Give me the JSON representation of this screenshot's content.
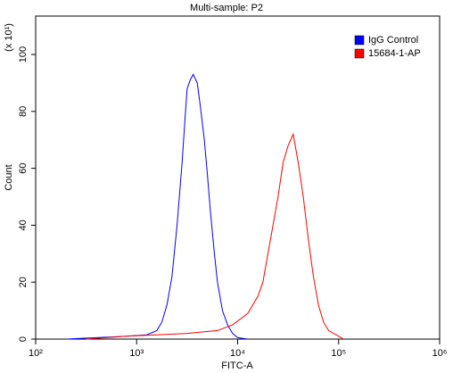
{
  "chart_data": {
    "type": "line",
    "title": "Multi-sample: P2",
    "x_label": "FITC-A",
    "y_label": "Count",
    "y_multiplier": "(x 10¹)",
    "xscale": "log",
    "xlim": [
      100,
      1000000
    ],
    "xticks": [
      {
        "value": 100,
        "label": "10²"
      },
      {
        "value": 1000,
        "label": "10³"
      },
      {
        "value": 10000,
        "label": "10⁴"
      },
      {
        "value": 100000,
        "label": "10⁵"
      },
      {
        "value": 1000000,
        "label": "10⁶"
      }
    ],
    "ylim": [
      0,
      113.5
    ],
    "yticks": [
      0,
      20,
      40,
      60,
      80,
      100
    ],
    "legend": "top-right",
    "series": [
      {
        "name": "IgG Control",
        "color": "#0000ff",
        "x": [
          200,
          398,
          794,
          1259,
          1585,
          1778,
          1995,
          2239,
          2512,
          2818,
          3020,
          3162,
          3388,
          3631,
          3981,
          4266,
          4677,
          5012,
          5370,
          5888,
          6310,
          7079,
          7943,
          8913,
          10000,
          12589
        ],
        "values": [
          0,
          0.5,
          1,
          1.5,
          3,
          6,
          12,
          22,
          40,
          62,
          78,
          88,
          91,
          93,
          90,
          82,
          70,
          58,
          45,
          30,
          20,
          10,
          5,
          2,
          0.5,
          0
        ]
      },
      {
        "name": "15684-1-AP",
        "color": "#ff0000",
        "x": [
          316,
          794,
          1585,
          3162,
          6310,
          8913,
          12589,
          15849,
          17783,
          19953,
          22387,
          25119,
          28184,
          31623,
          35481,
          39811,
          44668,
          50119,
          56234,
          63096,
          70795,
          79433,
          100000,
          112202
        ],
        "values": [
          0,
          1,
          1.5,
          2,
          3,
          5,
          9,
          15,
          20,
          30,
          40,
          50,
          62,
          68,
          72,
          62,
          50,
          35,
          22,
          12,
          6,
          3,
          1,
          0
        ]
      }
    ]
  }
}
